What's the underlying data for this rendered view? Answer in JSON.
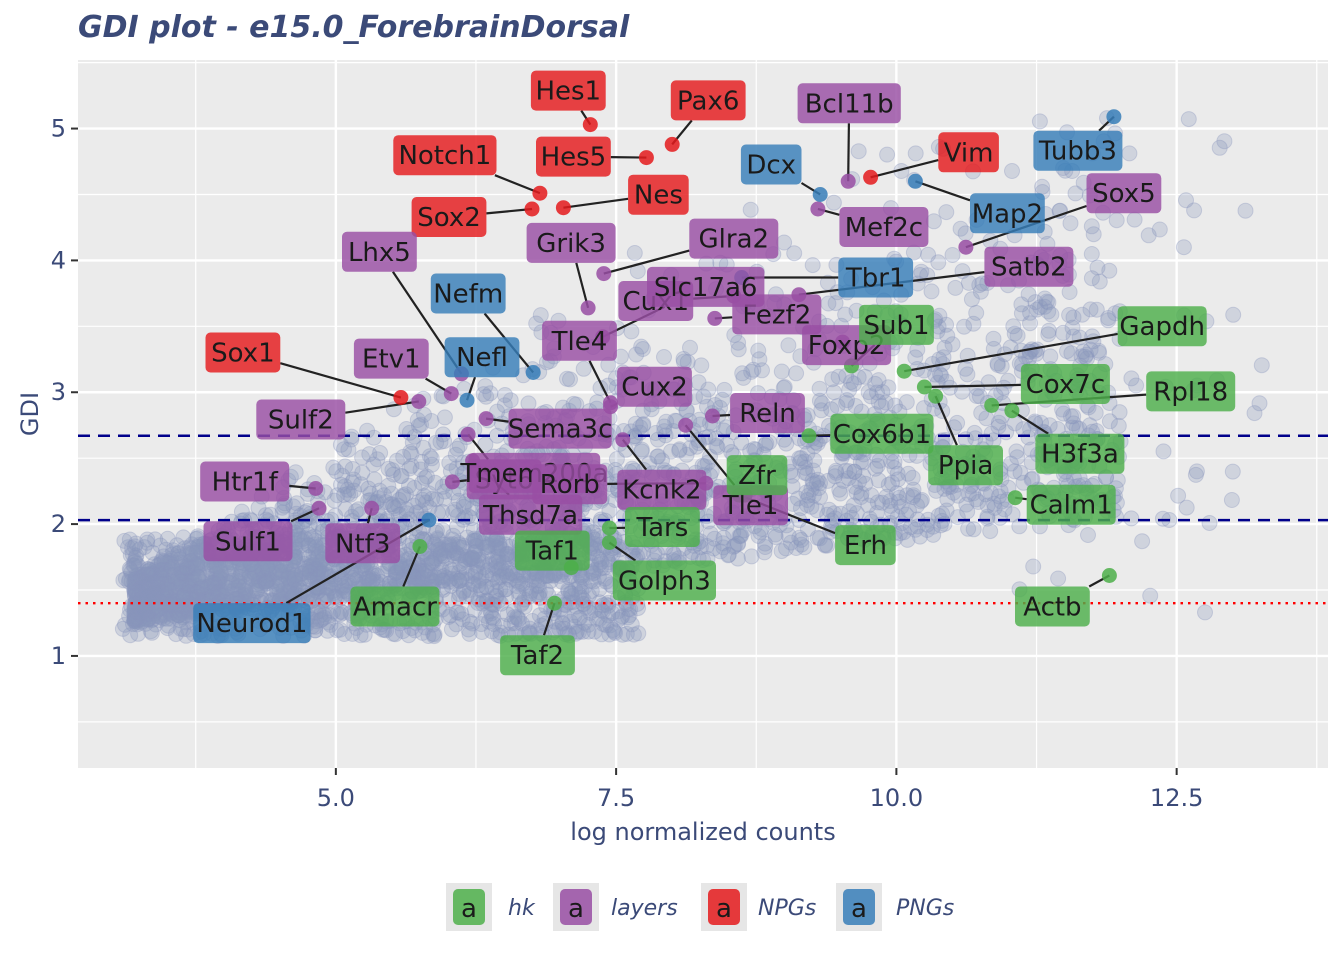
{
  "chart_data": {
    "type": "scatter",
    "title": "GDI plot - e15.0_ForebrainDorsal",
    "xlabel": "log normalized counts",
    "ylabel": "GDI",
    "xlim": [
      2.7,
      13.85
    ],
    "ylim": [
      0.15,
      5.52
    ],
    "x_ticks": [
      5.0,
      7.5,
      10.0,
      12.5
    ],
    "x_tick_labels": [
      "5.0",
      "7.5",
      "10.0",
      "12.5"
    ],
    "y_ticks": [
      1,
      2,
      3,
      4,
      5
    ],
    "y_tick_labels": [
      "1",
      "2",
      "3",
      "4",
      "5"
    ],
    "grid": true,
    "legend_position": "bottom",
    "threshold_lines": [
      {
        "style": "dashed",
        "color": "#00008b",
        "y": 2.67
      },
      {
        "style": "dashed",
        "color": "#00008b",
        "y": 2.03
      },
      {
        "style": "dotted",
        "color": "#ff0000",
        "y": 1.4
      }
    ],
    "groups": [
      {
        "key": "hk",
        "name": "hk",
        "color": "#4daf4a"
      },
      {
        "key": "layers",
        "name": "layers",
        "color": "#984ea3"
      },
      {
        "key": "NPGs",
        "name": "NPGs",
        "color": "#e41a1c"
      },
      {
        "key": "PNGs",
        "name": "PNGs",
        "color": "#377eb8"
      }
    ],
    "legend_key_glyph": "a",
    "background_points_color": "#8a96bc",
    "genes": [
      {
        "name": "Hes1",
        "group": "NPGs",
        "x": 7.27,
        "y": 5.03
      },
      {
        "name": "Pax6",
        "group": "NPGs",
        "x": 8.0,
        "y": 4.88
      },
      {
        "name": "Hes5",
        "group": "NPGs",
        "x": 7.77,
        "y": 4.78
      },
      {
        "name": "Notch1",
        "group": "NPGs",
        "x": 6.82,
        "y": 4.51
      },
      {
        "name": "Nes",
        "group": "NPGs",
        "x": 7.03,
        "y": 4.4
      },
      {
        "name": "Sox2",
        "group": "NPGs",
        "x": 6.75,
        "y": 4.39
      },
      {
        "name": "Vim",
        "group": "NPGs",
        "x": 9.77,
        "y": 4.63
      },
      {
        "name": "Sox1",
        "group": "NPGs",
        "x": 5.58,
        "y": 2.96
      },
      {
        "name": "Bcl11b",
        "group": "layers",
        "x": 9.57,
        "y": 4.6
      },
      {
        "name": "Mef2c",
        "group": "layers",
        "x": 9.3,
        "y": 4.39
      },
      {
        "name": "Sox5",
        "group": "layers",
        "x": 10.62,
        "y": 4.1
      },
      {
        "name": "Satb2",
        "group": "layers",
        "x": 9.13,
        "y": 3.74
      },
      {
        "name": "Glra2",
        "group": "layers",
        "x": 7.39,
        "y": 3.9
      },
      {
        "name": "Grik3",
        "group": "layers",
        "x": 7.25,
        "y": 3.64
      },
      {
        "name": "Cux1",
        "group": "layers",
        "x": 8.55,
        "y": 3.73
      },
      {
        "name": "Fezf2",
        "group": "layers",
        "x": 8.38,
        "y": 3.56
      },
      {
        "name": "Lhx5",
        "group": "layers",
        "x": 6.12,
        "y": 3.14
      },
      {
        "name": "Etv1",
        "group": "layers",
        "x": 6.03,
        "y": 2.99
      },
      {
        "name": "Tle4",
        "group": "layers",
        "x": 7.45,
        "y": 2.92
      },
      {
        "name": "Slc17a6",
        "group": "layers",
        "x": 7.38,
        "y": 3.42
      },
      {
        "name": "Foxp2",
        "group": "layers",
        "x": 9.52,
        "y": 3.38
      },
      {
        "name": "Cux2",
        "group": "layers",
        "x": 7.45,
        "y": 2.89
      },
      {
        "name": "Reln",
        "group": "layers",
        "x": 8.36,
        "y": 2.82
      },
      {
        "name": "Sulf2",
        "group": "layers",
        "x": 5.74,
        "y": 2.93
      },
      {
        "name": "Sema3c",
        "group": "layers",
        "x": 6.34,
        "y": 2.8
      },
      {
        "name": "Kcnk2",
        "group": "layers",
        "x": 7.56,
        "y": 2.64
      },
      {
        "name": "Tle1",
        "group": "layers",
        "x": 8.12,
        "y": 2.75
      },
      {
        "name": "Syt6",
        "group": "layers",
        "x": 6.18,
        "y": 2.68
      },
      {
        "name": "Htr1f",
        "group": "layers",
        "x": 4.82,
        "y": 2.27
      },
      {
        "name": "Tmem200a",
        "group": "layers",
        "x": 6.04,
        "y": 2.32
      },
      {
        "name": "Rorb",
        "group": "layers",
        "x": 8.3,
        "y": 2.31
      },
      {
        "name": "Sulf1",
        "group": "layers",
        "x": 4.85,
        "y": 2.12
      },
      {
        "name": "Ntf3",
        "group": "layers",
        "x": 5.32,
        "y": 2.12
      },
      {
        "name": "Thsd7a",
        "group": "layers",
        "x": 6.22,
        "y": 2.48
      },
      {
        "name": "Dcx",
        "group": "PNGs",
        "x": 9.32,
        "y": 4.5
      },
      {
        "name": "Tubb3",
        "group": "PNGs",
        "x": 11.94,
        "y": 5.09
      },
      {
        "name": "Map2",
        "group": "PNGs",
        "x": 10.17,
        "y": 4.6
      },
      {
        "name": "Tbr1",
        "group": "PNGs",
        "x": 8.62,
        "y": 3.87
      },
      {
        "name": "Nefm",
        "group": "PNGs",
        "x": 6.76,
        "y": 3.15
      },
      {
        "name": "Nefl",
        "group": "PNGs",
        "x": 6.17,
        "y": 2.94
      },
      {
        "name": "Neurod1",
        "group": "PNGs",
        "x": 5.83,
        "y": 2.03
      },
      {
        "name": "Gapdh",
        "group": "hk",
        "x": 10.07,
        "y": 3.16
      },
      {
        "name": "Sub1",
        "group": "hk",
        "x": 9.6,
        "y": 3.2
      },
      {
        "name": "Cox7c",
        "group": "hk",
        "x": 10.25,
        "y": 3.04
      },
      {
        "name": "Rpl18",
        "group": "hk",
        "x": 10.85,
        "y": 2.9
      },
      {
        "name": "H3f3a",
        "group": "hk",
        "x": 11.03,
        "y": 2.86
      },
      {
        "name": "Cox6b1",
        "group": "hk",
        "x": 9.22,
        "y": 2.67
      },
      {
        "name": "Ppia",
        "group": "hk",
        "x": 10.35,
        "y": 2.97
      },
      {
        "name": "Erh",
        "group": "hk",
        "x": 8.6,
        "y": 2.22
      },
      {
        "name": "Zfr",
        "group": "hk",
        "x": 8.65,
        "y": 2.22
      },
      {
        "name": "Tars",
        "group": "hk",
        "x": 7.44,
        "y": 1.97
      },
      {
        "name": "Calm1",
        "group": "hk",
        "x": 11.06,
        "y": 2.2
      },
      {
        "name": "Taf1",
        "group": "hk",
        "x": 7.1,
        "y": 1.67
      },
      {
        "name": "Golph3",
        "group": "hk",
        "x": 7.44,
        "y": 1.86
      },
      {
        "name": "Taf2",
        "group": "hk",
        "x": 6.95,
        "y": 1.4
      },
      {
        "name": "Amacr",
        "group": "hk",
        "x": 5.75,
        "y": 1.83
      },
      {
        "name": "Actb",
        "group": "hk",
        "x": 11.9,
        "y": 1.61
      }
    ]
  }
}
